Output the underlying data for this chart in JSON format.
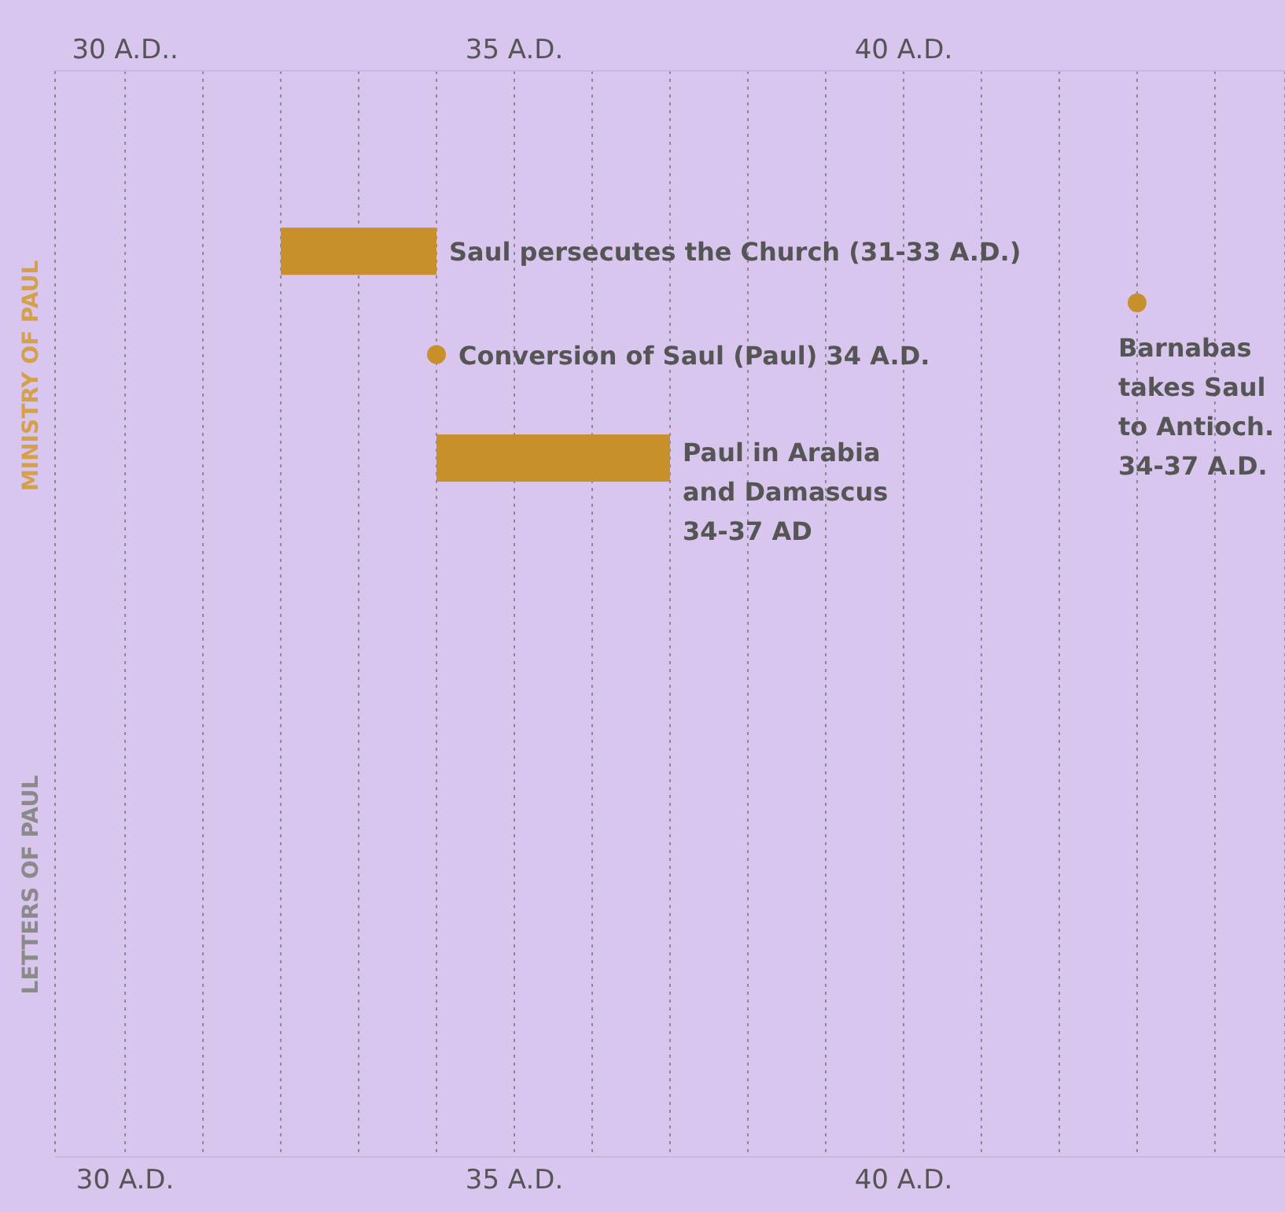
{
  "chart_data": {
    "type": "bar",
    "orientation": "horizontal",
    "categories": [
      null,
      null,
      null,
      null,
      null,
      null,
      null,
      null,
      null,
      null,
      null,
      null,
      null,
      null,
      null,
      null,
      null,
      null,
      null,
      null,
      null
    ],
    "series": [
      {
        "color": "#c8902a",
        "values": [
          null,
          null,
          null,
          2,
          null,
          null,
          null,
          3,
          null,
          null,
          null,
          null,
          null,
          null,
          null,
          null,
          null,
          null,
          null,
          null,
          null
        ],
        "base": [
          null,
          null,
          null,
          32,
          null,
          null,
          null,
          34,
          null,
          null,
          null,
          null,
          null,
          null,
          null,
          null,
          null,
          null,
          null,
          null,
          null
        ],
        "value_labels": [
          null,
          null,
          null,
          "Saul persecutes the Church (31-33 A.D.)",
          null,
          null,
          null,
          "Paul in Arabia\nand Damascus\n34-37 AD",
          null,
          null,
          null,
          null,
          null,
          null,
          null,
          null,
          null,
          null,
          null,
          null,
          null
        ]
      },
      {
        "type": "scatter",
        "color": "#c8902a",
        "marker": "circle",
        "values": [
          null,
          null,
          null,
          null,
          43,
          34,
          null,
          null,
          null,
          null,
          null,
          null,
          null,
          null,
          null,
          null,
          null,
          null,
          null,
          null,
          null
        ],
        "value_labels": [
          null,
          null,
          null,
          null,
          "Barnabas\ntakes Saul\nto Antioch.\n34-37 A.D.",
          "Conversion of Saul (Paul) 34 A.D.",
          null,
          null,
          null,
          null,
          null,
          null,
          null,
          null,
          null,
          null,
          null,
          null,
          null,
          null,
          null
        ]
      }
    ],
    "xlim": [
      29.1,
      44.9
    ],
    "xticks": [
      {
        "value": 30,
        "label": "30 A.D."
      },
      {
        "value": 31,
        "label": null
      },
      {
        "value": 32,
        "label": null
      },
      {
        "value": 33,
        "label": null
      },
      {
        "value": 34,
        "label": null
      },
      {
        "value": 35,
        "label": "35 A.D."
      },
      {
        "value": 36,
        "label": null
      },
      {
        "value": 37,
        "label": null
      },
      {
        "value": 38,
        "label": null
      },
      {
        "value": 39,
        "label": null
      },
      {
        "value": 40,
        "label": "40 A.D."
      },
      {
        "value": 41,
        "label": null
      },
      {
        "value": 42,
        "label": null
      },
      {
        "value": 43,
        "label": null
      },
      {
        "value": 44,
        "label": null
      }
    ],
    "x2lim": [
      29.1,
      44.9
    ],
    "x2ticks": [
      {
        "value": 30,
        "label": "30 A.D.."
      },
      {
        "value": 35,
        "label": "35 A.D."
      },
      {
        "value": 40,
        "label": "40 A.D."
      }
    ],
    "grid": "x",
    "annotations": [
      "MINISTRY OF PAUL",
      "LETTERS OF PAUL"
    ]
  }
}
